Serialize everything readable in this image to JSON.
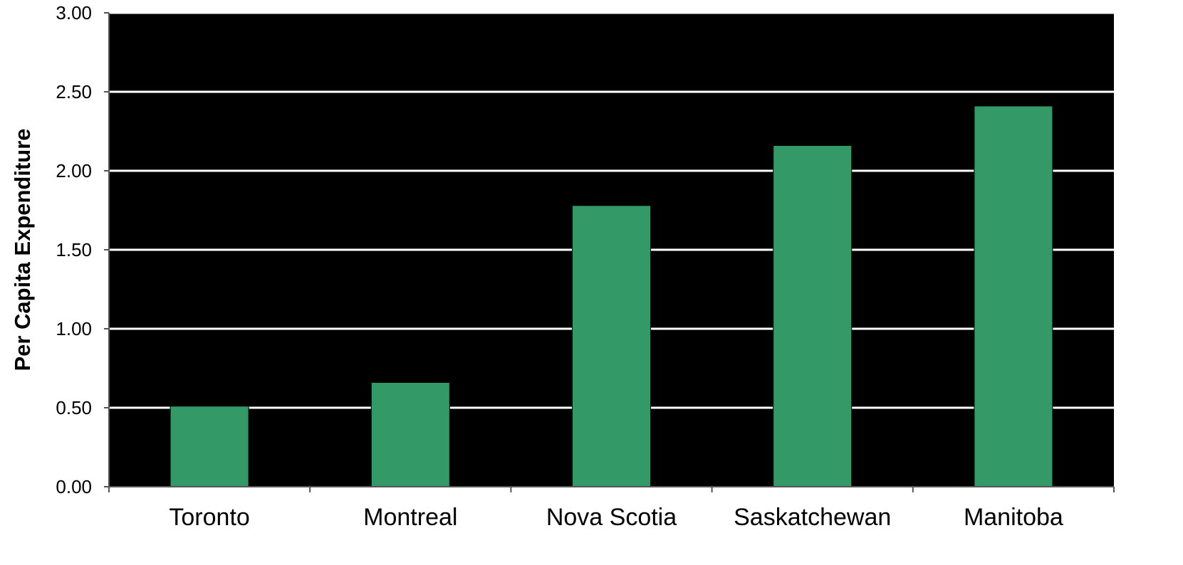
{
  "chart_data": {
    "type": "bar",
    "title": "",
    "xlabel": "",
    "ylabel": "Per Capita Expenditure",
    "categories": [
      "Toronto",
      "Montreal",
      "Nova Scotia",
      "Saskatchewan",
      "Manitoba"
    ],
    "values": [
      0.51,
      0.66,
      1.78,
      2.16,
      2.41
    ],
    "ylim": [
      0,
      3
    ],
    "yticks": [
      "0.00",
      "0.50",
      "1.00",
      "1.50",
      "2.00",
      "2.50",
      "3.00"
    ],
    "grid": true,
    "legend": "none",
    "colors": {
      "bar": "#339966",
      "plot_background": "#000000",
      "gridline": "#ffffff",
      "text": "#000000"
    }
  }
}
